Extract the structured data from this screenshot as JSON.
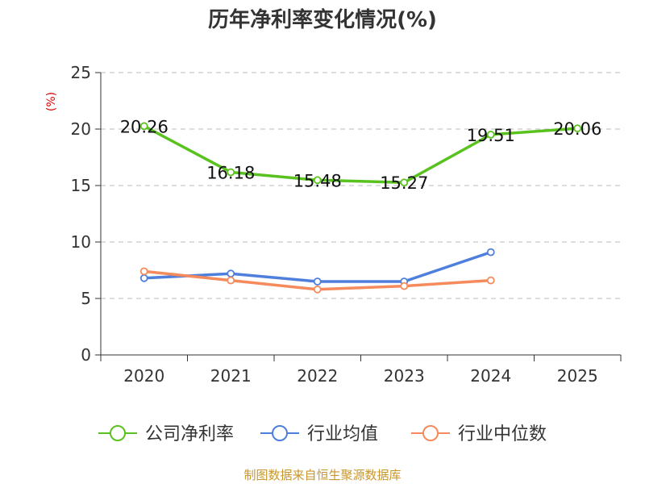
{
  "chart_data": {
    "type": "line",
    "title": "历年净利率变化情况(%)",
    "ylabel": "(%)",
    "xlabel": "",
    "categories": [
      "2020",
      "2021",
      "2022",
      "2023",
      "2024",
      "2025"
    ],
    "ylim": [
      0,
      25
    ],
    "yticks": [
      "0",
      "5",
      "10",
      "15",
      "20",
      "25"
    ],
    "grid": true,
    "legend_position": "bottom",
    "series": [
      {
        "name": "公司净利率",
        "color": "#5ac21e",
        "values": [
          20.26,
          16.18,
          15.48,
          15.27,
          19.51,
          20.06
        ],
        "labels": [
          "20.26",
          "16.18",
          "15.48",
          "15.27",
          "19.51",
          "20.06"
        ]
      },
      {
        "name": "行业均值",
        "color": "#4f7fdc",
        "values": [
          6.8,
          7.2,
          6.5,
          6.5,
          9.1,
          null
        ]
      },
      {
        "name": "行业中位数",
        "color": "#f58b5c",
        "values": [
          7.4,
          6.6,
          5.8,
          6.1,
          6.6,
          null
        ]
      }
    ],
    "source": "制图数据来自恒生聚源数据库"
  }
}
